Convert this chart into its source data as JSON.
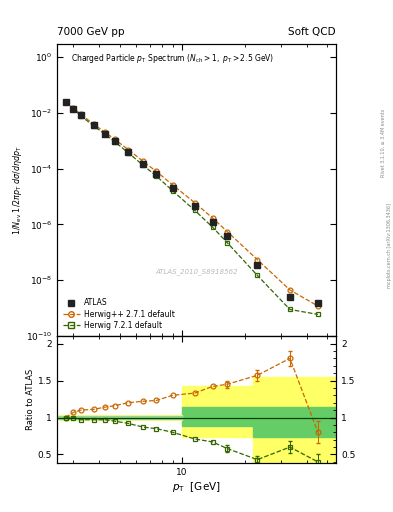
{
  "title_left": "7000 GeV pp",
  "title_right": "Soft QCD",
  "watermark": "ATLAS_2010_S8918562",
  "right_label": "mcplots.cern.ch [arXiv:1306.3436]",
  "right_label2": "Rivet 3.1.10, ≥ 3.4M events",
  "atlas_pt": [
    2.75,
    3.0,
    3.25,
    3.75,
    4.25,
    4.75,
    5.5,
    6.5,
    7.5,
    9.0,
    11.5,
    14.0,
    16.5,
    23.0,
    33.0,
    45.0
  ],
  "atlas_y": [
    0.025,
    0.0135,
    0.008,
    0.0035,
    0.00175,
    0.00095,
    0.0004,
    0.00015,
    6.5e-05,
    2e-05,
    4.5e-06,
    1.2e-06,
    3.8e-07,
    3.5e-08,
    2.5e-09,
    1.5e-09
  ],
  "atlas_yerr": [
    0.0015,
    0.0008,
    0.0005,
    0.0002,
    0.0001,
    6e-05,
    2.5e-05,
    9e-06,
    4e-06,
    1.2e-06,
    3e-07,
    8e-08,
    2.5e-08,
    2.5e-09,
    2e-10,
    1.5e-10
  ],
  "hpp_pt": [
    2.75,
    3.0,
    3.25,
    3.75,
    4.25,
    4.75,
    5.5,
    6.5,
    7.5,
    9.0,
    11.5,
    14.0,
    16.5,
    23.0,
    33.0,
    45.0
  ],
  "hpp_y": [
    0.025,
    0.0145,
    0.0088,
    0.0039,
    0.002,
    0.0011,
    0.00048,
    0.00018,
    8e-05,
    2.6e-05,
    6e-06,
    1.7e-06,
    5.5e-07,
    5.5e-08,
    4.5e-09,
    1.2e-09
  ],
  "h72_pt": [
    2.75,
    3.0,
    3.25,
    3.75,
    4.25,
    4.75,
    5.5,
    6.5,
    7.5,
    9.0,
    11.5,
    14.0,
    16.5,
    23.0,
    33.0,
    45.0
  ],
  "h72_y": [
    0.025,
    0.0135,
    0.0078,
    0.0034,
    0.0017,
    0.0009,
    0.00037,
    0.00013,
    5.5e-05,
    1.6e-05,
    3.2e-06,
    8e-07,
    2.2e-07,
    1.5e-08,
    9e-10,
    6e-10
  ],
  "ratio_pt": [
    2.75,
    3.0,
    3.25,
    3.75,
    4.25,
    4.75,
    5.5,
    6.5,
    7.5,
    9.0,
    11.5,
    14.0,
    16.5,
    23.0,
    33.0,
    45.0
  ],
  "ratio_pp": [
    1.0,
    1.07,
    1.1,
    1.11,
    1.14,
    1.16,
    1.2,
    1.22,
    1.23,
    1.3,
    1.33,
    1.42,
    1.45,
    1.57,
    1.8,
    0.8
  ],
  "ratio_72": [
    1.0,
    1.0,
    0.97,
    0.97,
    0.97,
    0.95,
    0.92,
    0.87,
    0.85,
    0.8,
    0.71,
    0.67,
    0.58,
    0.43,
    0.6,
    0.4
  ],
  "ratio_pp_err": [
    0.0,
    0.0,
    0.0,
    0.0,
    0.0,
    0.0,
    0.0,
    0.0,
    0.0,
    0.0,
    0.0,
    0.0,
    0.05,
    0.07,
    0.1,
    0.15
  ],
  "ratio_72_err": [
    0.0,
    0.0,
    0.0,
    0.0,
    0.0,
    0.0,
    0.0,
    0.0,
    0.0,
    0.0,
    0.0,
    0.0,
    0.05,
    0.05,
    0.08,
    0.1
  ],
  "color_atlas": "#222222",
  "color_hpp": "#cc6600",
  "color_h72": "#336600",
  "xlim": [
    2.5,
    55.0
  ],
  "ylim_main": [
    1e-10,
    3.0
  ],
  "ylim_ratio": [
    0.38,
    2.1
  ],
  "band1_xstart": 10.0,
  "band1_yellow": [
    0.73,
    1.42
  ],
  "band1_green": [
    0.88,
    1.14
  ],
  "band2_xstart": 22.0,
  "band2_yellow": [
    0.4,
    1.55
  ],
  "band2_green": [
    0.73,
    1.14
  ]
}
